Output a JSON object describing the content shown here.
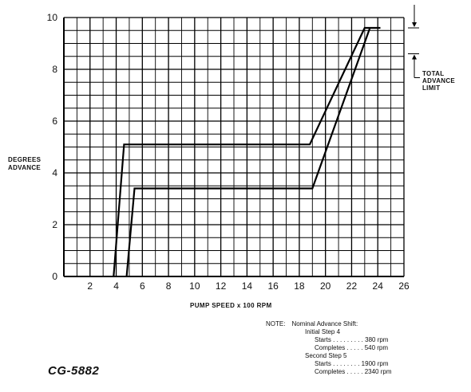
{
  "chart_data": {
    "type": "line",
    "title": "",
    "xlabel": "PUMP SPEED x 100 RPM",
    "ylabel": [
      "DEGREES",
      "ADVANCE"
    ],
    "xlim": [
      0,
      26
    ],
    "ylim": [
      0,
      10
    ],
    "x_ticks": [
      2,
      4,
      6,
      8,
      10,
      12,
      14,
      16,
      18,
      20,
      22,
      24,
      26
    ],
    "y_ticks": [
      0,
      2,
      4,
      6,
      8,
      10
    ],
    "grid": true,
    "series": [
      {
        "points": [
          [
            3.8,
            0
          ],
          [
            4.6,
            5.1
          ],
          [
            18.8,
            5.1
          ],
          [
            23.0,
            9.6
          ],
          [
            24.2,
            9.6
          ]
        ]
      },
      {
        "points": [
          [
            4.8,
            0
          ],
          [
            5.4,
            3.4
          ],
          [
            19.0,
            3.4
          ],
          [
            23.4,
            9.6
          ]
        ]
      }
    ],
    "annotations": {
      "limit_label": [
        "TOTAL",
        "ADVANCE",
        "LIMIT"
      ]
    }
  },
  "note": {
    "heading": "NOTE:",
    "title": "Nominal Advance Shift:",
    "step1": "Initial Step 4",
    "step1_starts": "Starts . . . . . . . . . 380 rpm",
    "step1_completes": "Completes . . . . . 540 rpm",
    "step2": "Second Step 5",
    "step2_starts": "Starts . . . . . . . . 1900 rpm",
    "step2_completes": "Completes . . . . . 2340 rpm"
  },
  "code": "CG-5882"
}
